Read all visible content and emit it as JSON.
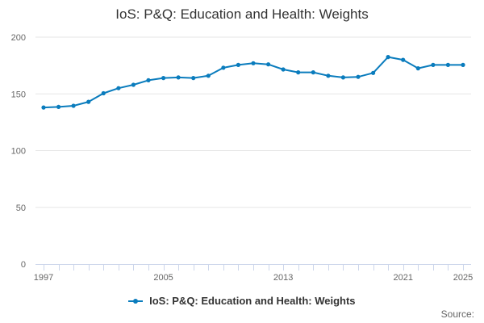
{
  "colors": {
    "series": "#0a7cbd",
    "grid": "#e6e6e6",
    "axis": "#ccd6eb",
    "text": "#333333",
    "tick_text": "#666666"
  },
  "chart_data": {
    "type": "line",
    "title": "IoS: P&Q: Education and Health: Weights",
    "xlabel": "",
    "ylabel": "",
    "x": [
      1997,
      1998,
      1999,
      2000,
      2001,
      2002,
      2003,
      2004,
      2005,
      2006,
      2007,
      2008,
      2009,
      2010,
      2011,
      2012,
      2013,
      2014,
      2015,
      2016,
      2017,
      2018,
      2019,
      2020,
      2021,
      2022,
      2023,
      2024,
      2025
    ],
    "x_tick_labels": [
      "1997",
      "2005",
      "2013",
      "2021",
      "2025"
    ],
    "ylim": [
      0,
      200
    ],
    "y_ticks": [
      0,
      50,
      100,
      150,
      200
    ],
    "grid": true,
    "legend_position": "bottom-center",
    "series": [
      {
        "name": "IoS: P&Q: Education and Health: Weights",
        "values": [
          138,
          138.5,
          139.5,
          143,
          150.5,
          155,
          158,
          162,
          164,
          164.5,
          164,
          166,
          173,
          175.5,
          177,
          176,
          171.5,
          169,
          169,
          166,
          164.5,
          165,
          168.5,
          182.5,
          180,
          172.5,
          175.5,
          175.5,
          175.5
        ]
      }
    ]
  },
  "legend": {
    "label": "IoS: P&Q: Education and Health: Weights"
  },
  "footer": {
    "source_label": "Source:"
  }
}
